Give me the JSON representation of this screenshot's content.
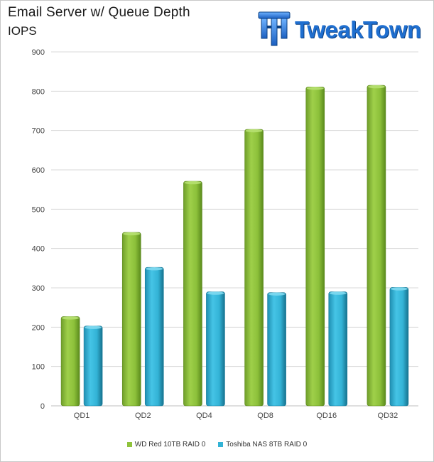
{
  "header": {
    "title": "Email Server  w/ Queue  Depth",
    "subtitle": "IOPS"
  },
  "logo": {
    "text": "TweakTown"
  },
  "colors": {
    "series1": "#8fc33c",
    "series1_dark": "#5e8a1e",
    "series2": "#33b3d6",
    "series2_dark": "#1a7d9c",
    "grid": "#d9d9d9",
    "axis_text": "#444444",
    "logo_blue": "#1f6fd0"
  },
  "chart_data": {
    "type": "bar",
    "title": "Email Server  w/ Queue  Depth",
    "subtitle": "IOPS",
    "categories": [
      "QD1",
      "QD2",
      "QD4",
      "QD8",
      "QD16",
      "QD32"
    ],
    "series": [
      {
        "name": "WD Red 10TB RAID 0",
        "values": [
          227,
          441,
          571,
          703,
          811,
          815
        ]
      },
      {
        "name": "Toshiba NAS 8TB RAID 0",
        "values": [
          203,
          352,
          290,
          288,
          290,
          301
        ]
      }
    ],
    "ylim": [
      0,
      900
    ],
    "yticks": [
      0,
      100,
      200,
      300,
      400,
      500,
      600,
      700,
      800,
      900
    ],
    "grid": true,
    "legend": "bottom"
  }
}
